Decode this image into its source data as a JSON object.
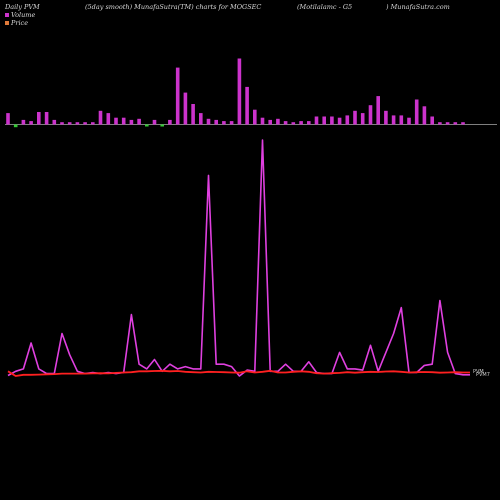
{
  "header": {
    "left": "Daily PVM",
    "center": "(5day smooth) MunafaSutra(TM) charts for MOGSEC",
    "right_a": "(Motilalamc - G5",
    "right_b": ") MunafaSutra.com"
  },
  "legend": {
    "volume_label": "Volume",
    "price_label": "Price",
    "volume_color": "#cc33cc",
    "price_color": "#e07a3a"
  },
  "end_labels": {
    "primary": "PVM",
    "secondary": "PVM7"
  },
  "chart_data": {
    "type": "line",
    "background": "#000000",
    "x": [
      1,
      2,
      3,
      4,
      5,
      6,
      7,
      8,
      9,
      10,
      11,
      12,
      13,
      14,
      15,
      16,
      17,
      18,
      19,
      20,
      21,
      22,
      23,
      24,
      25,
      26,
      27,
      28,
      29,
      30,
      31,
      32,
      33,
      34,
      35,
      36,
      37,
      38,
      39,
      40,
      41,
      42,
      43,
      44,
      45,
      46,
      47,
      48,
      49,
      50,
      51,
      52,
      53,
      54,
      55,
      56,
      57,
      58,
      59,
      60
    ],
    "volume": {
      "values": [
        10,
        6,
        4,
        3,
        11,
        11,
        4,
        2,
        2,
        2,
        2,
        2,
        12,
        10,
        6,
        6,
        4,
        5,
        4,
        4,
        4,
        4,
        50,
        28,
        18,
        10,
        5,
        4,
        3,
        3,
        58,
        33,
        13,
        6,
        4,
        5,
        3,
        2,
        3,
        3,
        7,
        7,
        7,
        6,
        8,
        12,
        10,
        17,
        25,
        12,
        8,
        8,
        6,
        22,
        16,
        7,
        2,
        2,
        2,
        2
      ],
      "up": [
        true,
        false,
        true,
        true,
        true,
        true,
        true,
        true,
        true,
        true,
        true,
        true,
        true,
        true,
        true,
        true,
        true,
        true,
        false,
        true,
        false,
        true,
        true,
        true,
        true,
        true,
        true,
        true,
        true,
        true,
        true,
        true,
        true,
        true,
        true,
        true,
        true,
        true,
        true,
        true,
        true,
        true,
        true,
        true,
        true,
        true,
        true,
        true,
        true,
        true,
        true,
        true,
        true,
        true,
        true,
        true,
        true,
        true,
        true,
        true
      ],
      "up_color": "#cc33cc",
      "down_color": "#33cc33"
    },
    "series": [
      {
        "color": "#e040e0",
        "values": [
          0.2,
          2,
          3,
          14,
          3,
          1,
          1,
          18,
          9,
          2,
          1,
          1.5,
          1,
          1.5,
          1,
          1.5,
          26,
          5,
          3,
          7,
          2,
          5,
          3,
          4,
          3,
          3,
          85,
          5,
          5,
          4,
          0,
          2.5,
          2,
          100,
          2,
          2,
          5,
          2,
          2,
          6,
          1.5,
          1,
          1,
          10,
          3,
          3,
          2.5,
          13,
          2,
          10,
          18,
          29,
          1.5,
          1.5,
          4.5,
          5,
          32,
          10,
          1,
          0.5
        ]
      },
      {
        "color": "#ff2020",
        "values": [
          2,
          0,
          0.5,
          0.5,
          0.6,
          0.7,
          0.8,
          1,
          1,
          1,
          1,
          1.1,
          1.2,
          1.1,
          1.3,
          1.5,
          1.6,
          2,
          2,
          2.1,
          2.2,
          2,
          2.1,
          1.8,
          1.6,
          1.5,
          1.8,
          1.7,
          1.6,
          1.5,
          1.4,
          2,
          1.5,
          1.8,
          2.2,
          1.5,
          1.5,
          1.8,
          2,
          1.8,
          1.2,
          1,
          1.2,
          1.3,
          1.6,
          1.4,
          1.6,
          1.8,
          1.7,
          1.9,
          2,
          1.8,
          1.5,
          1.6,
          1.7,
          1.6,
          1.4,
          1.5,
          1.6,
          1.5
        ]
      }
    ],
    "ylim": [
      0,
      100
    ],
    "grid": false
  }
}
